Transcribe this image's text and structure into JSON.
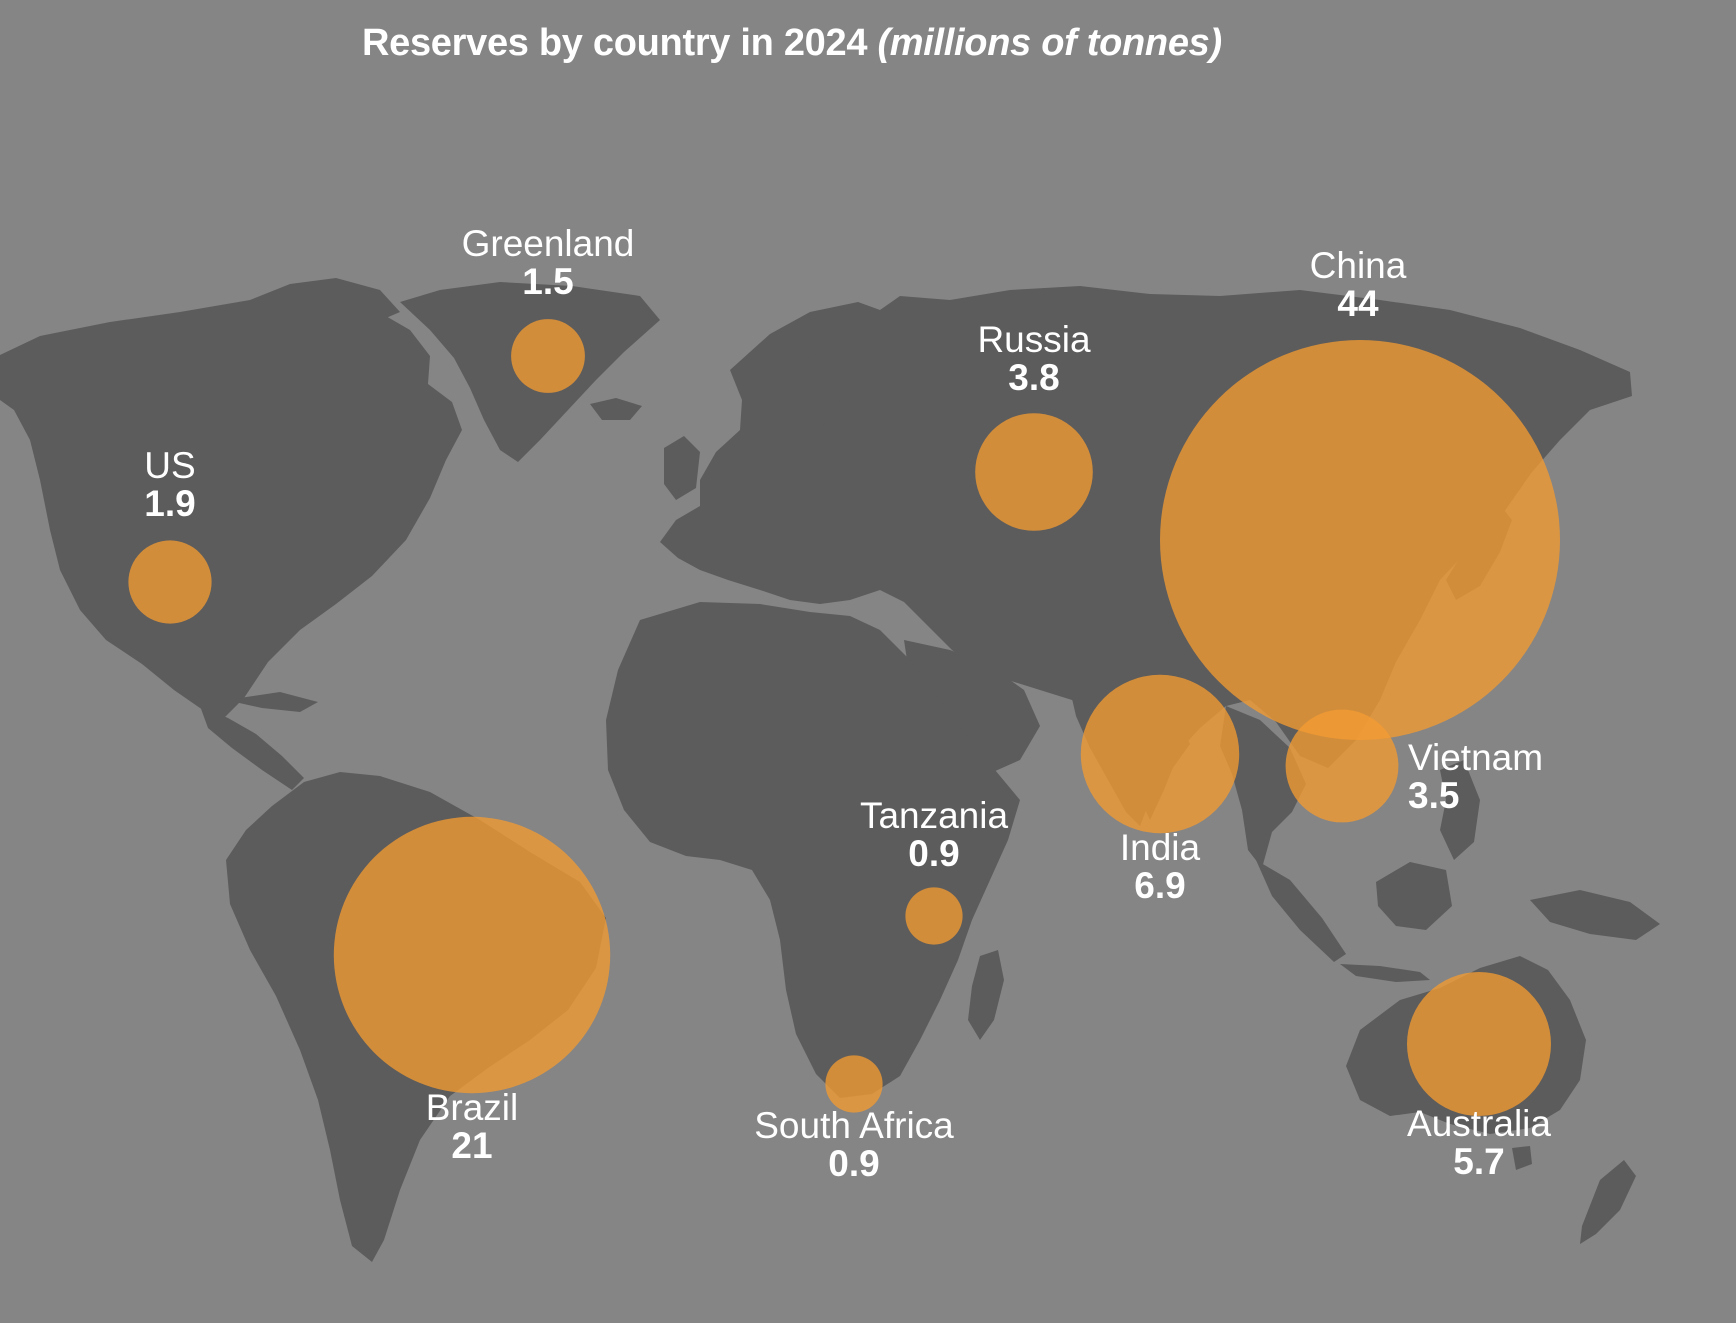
{
  "title": "Reserves by country in 2024",
  "subtitle": "(millions of tonnes)",
  "colors": {
    "background": "#858585",
    "land": "#5c5c5c",
    "bubble": "#f39b32",
    "text": "#ffffff"
  },
  "chart_data": {
    "type": "bubble-map",
    "unit": "millions of tonnes",
    "points": [
      {
        "country": "Greenland",
        "value": "1.5"
      },
      {
        "country": "China",
        "value": "44"
      },
      {
        "country": "Russia",
        "value": "3.8"
      },
      {
        "country": "US",
        "value": "1.9"
      },
      {
        "country": "Vietnam",
        "value": "3.5"
      },
      {
        "country": "Tanzania",
        "value": "0.9"
      },
      {
        "country": "India",
        "value": "6.9"
      },
      {
        "country": "Brazil",
        "value": "21"
      },
      {
        "country": "South Africa",
        "value": "0.9"
      },
      {
        "country": "Australia",
        "value": "5.7"
      }
    ]
  }
}
